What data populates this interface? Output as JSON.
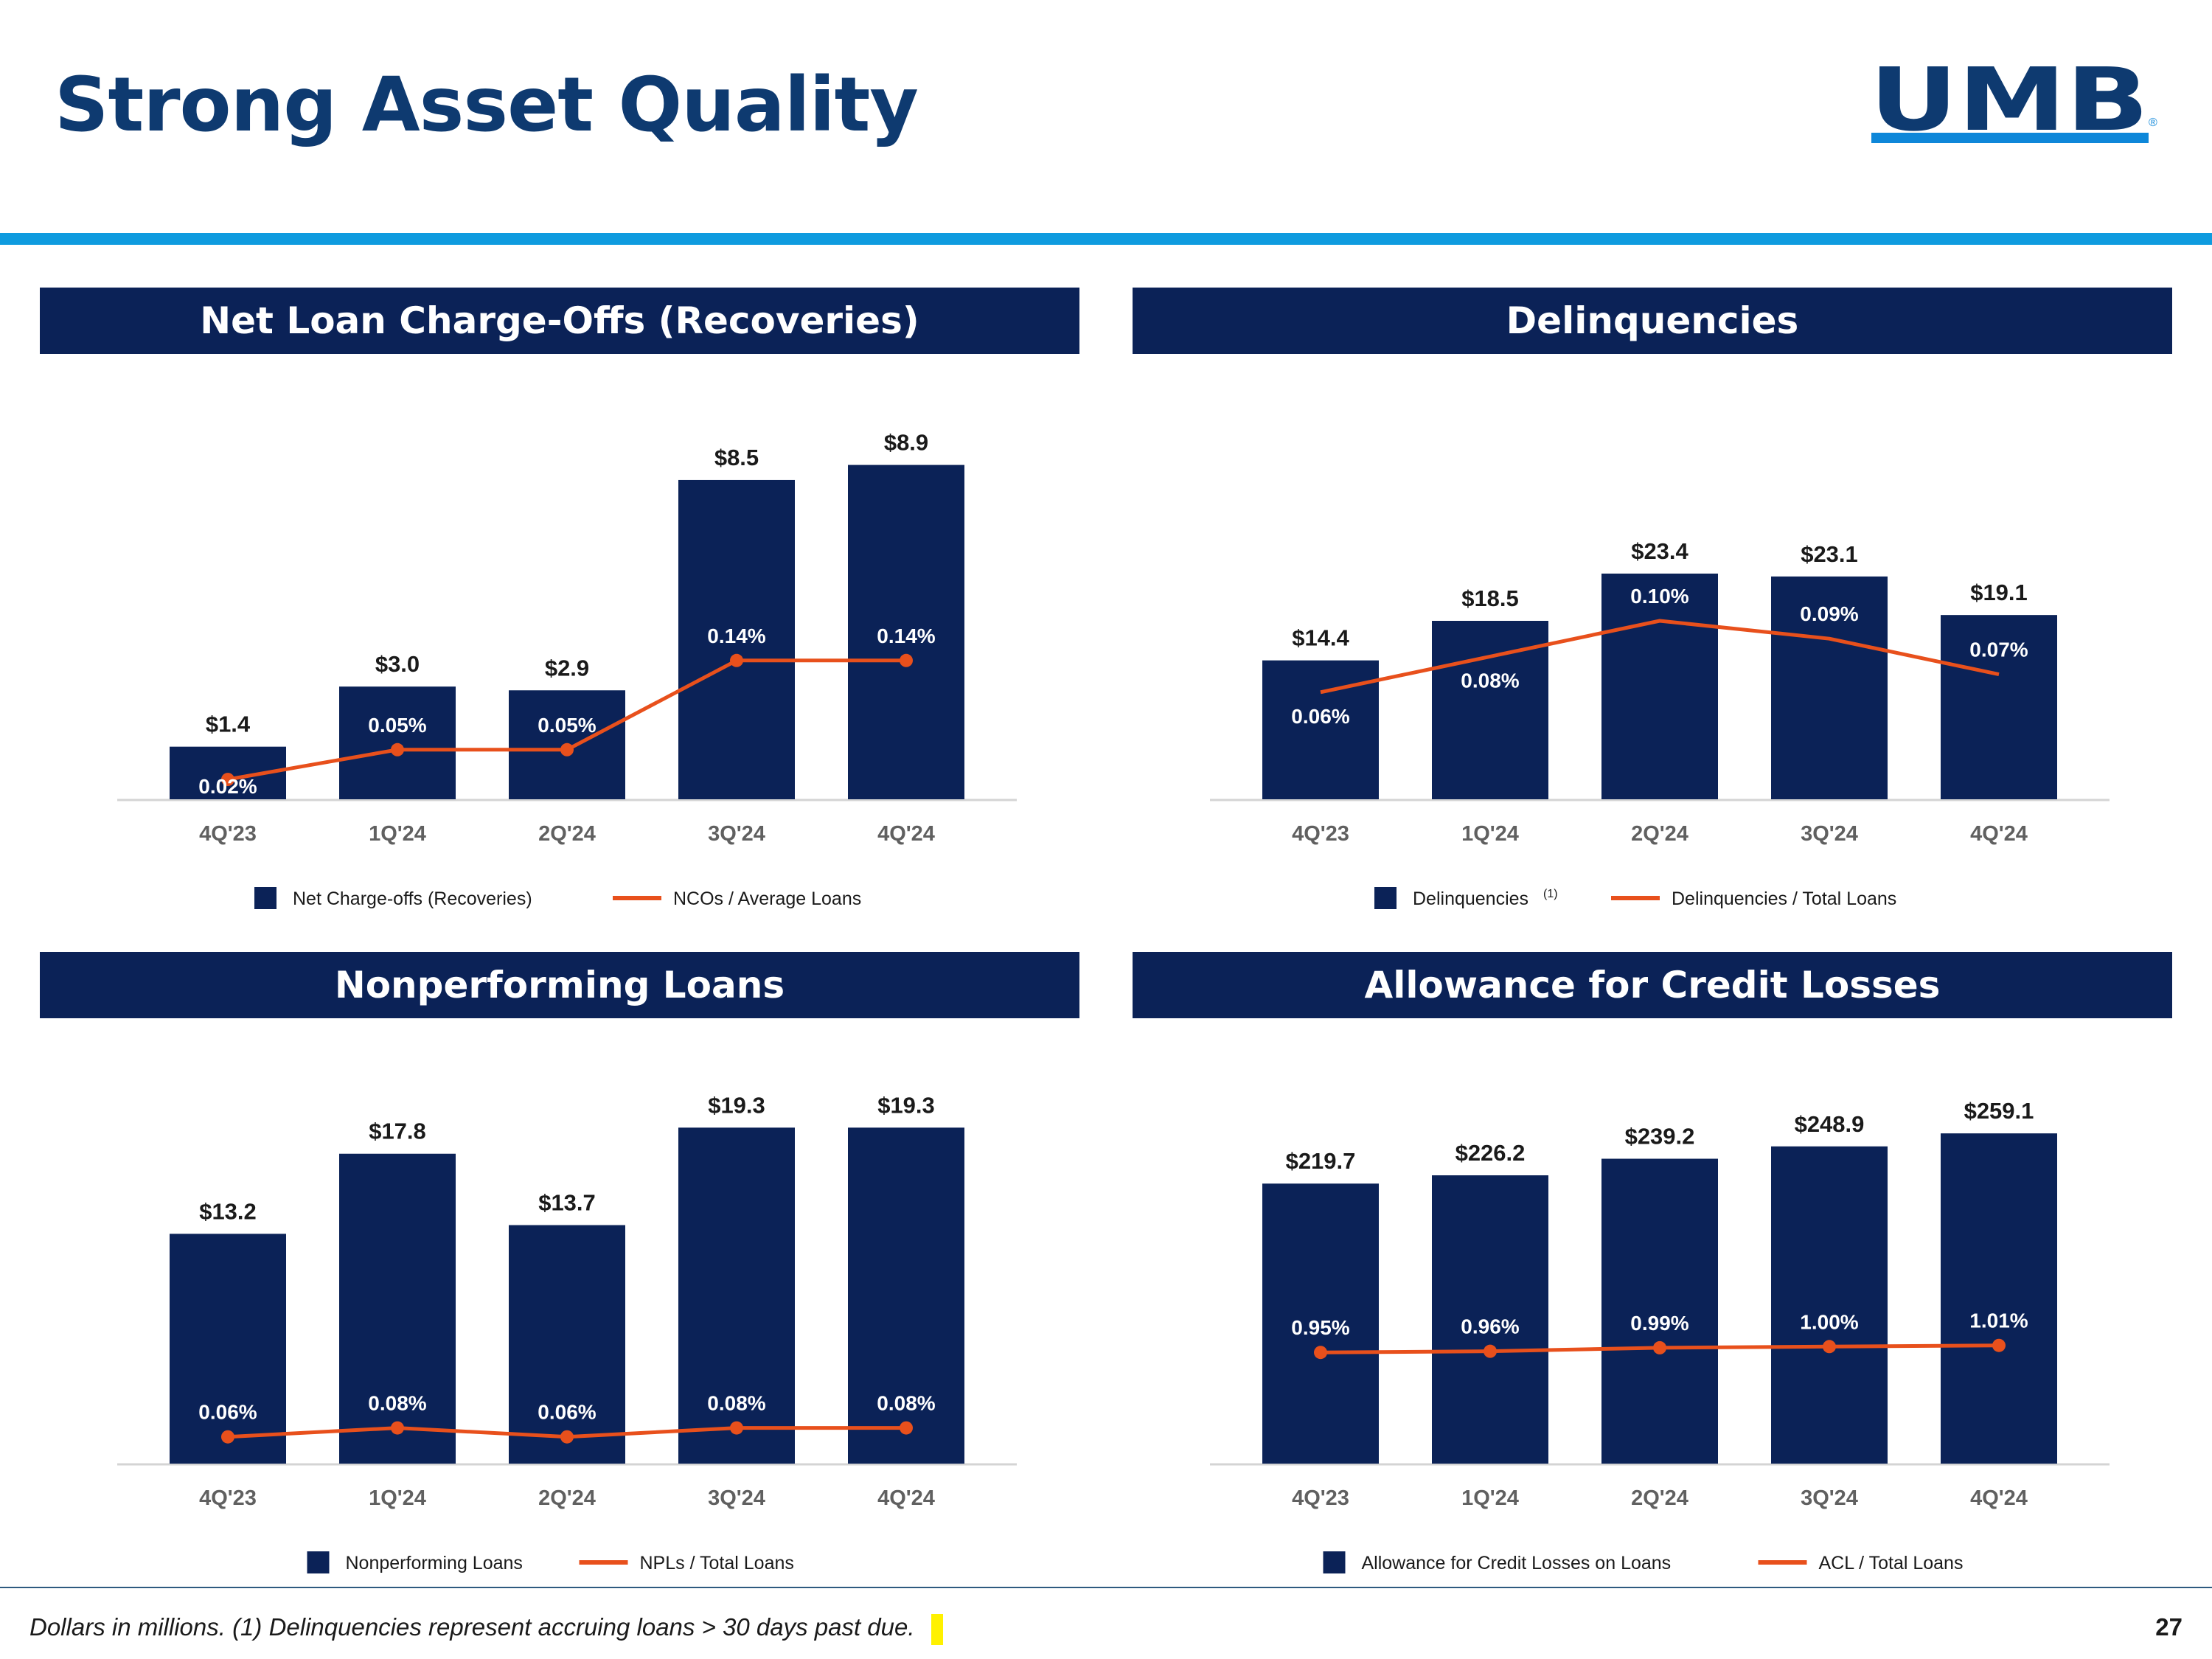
{
  "page": {
    "title": "Strong Asset Quality",
    "logo_text": "UMB",
    "logo_mark": "®",
    "footnote": "Dollars in millions. (1) Delinquencies represent accruing loans > 30 days past due.",
    "page_number": "27",
    "colors": {
      "title": "#0E3A70",
      "accent": "#0E9BDF",
      "bar": "#0B2257",
      "line": "#E8501C",
      "axis_label": "#606060"
    }
  },
  "chart_data": [
    {
      "type": "bar",
      "title": "Net Loan Charge-Offs (Recoveries)",
      "categories": [
        "4Q'23",
        "1Q'24",
        "2Q'24",
        "3Q'24",
        "4Q'24"
      ],
      "series": [
        {
          "name": "Net Charge-offs (Recoveries)",
          "kind": "bar",
          "values": [
            1.4,
            3.0,
            2.9,
            8.5,
            8.9
          ],
          "labels": [
            "$1.4",
            "$3.0",
            "$2.9",
            "$8.5",
            "$8.9"
          ]
        },
        {
          "name": "NCOs / Average Loans",
          "kind": "line",
          "values": [
            0.02,
            0.05,
            0.05,
            0.14,
            0.14
          ],
          "labels": [
            "0.02%",
            "0.05%",
            "0.05%",
            "0.14%",
            "0.14%"
          ]
        }
      ],
      "legend": [
        {
          "name": "Net Charge-offs (Recoveries)",
          "sup": ""
        },
        {
          "name": "NCOs / Average Loans",
          "sup": ""
        }
      ],
      "markers": true,
      "ylim": [
        0,
        9.5
      ],
      "y2lim": [
        0,
        0.36
      ]
    },
    {
      "type": "bar",
      "title": "Delinquencies",
      "categories": [
        "4Q'23",
        "1Q'24",
        "2Q'24",
        "3Q'24",
        "4Q'24"
      ],
      "series": [
        {
          "name": "Delinquencies",
          "kind": "bar",
          "values": [
            14.4,
            18.5,
            23.4,
            23.1,
            19.1
          ],
          "labels": [
            "$14.4",
            "$18.5",
            "$23.4",
            "$23.1",
            "$19.1"
          ]
        },
        {
          "name": "Delinquencies / Total Loans",
          "kind": "line",
          "values": [
            0.06,
            0.08,
            0.1,
            0.09,
            0.07
          ],
          "labels": [
            "0.06%",
            "0.08%",
            "0.10%",
            "0.09%",
            "0.07%"
          ]
        }
      ],
      "legend": [
        {
          "name": "Delinquencies",
          "sup": "(1)"
        },
        {
          "name": "Delinquencies / Total Loans",
          "sup": ""
        }
      ],
      "markers": false,
      "ylim": [
        0,
        37
      ],
      "y2lim": [
        0,
        0.2
      ]
    },
    {
      "type": "bar",
      "title": "Nonperforming Loans",
      "categories": [
        "4Q'23",
        "1Q'24",
        "2Q'24",
        "3Q'24",
        "4Q'24"
      ],
      "series": [
        {
          "name": "Nonperforming Loans",
          "kind": "bar",
          "values": [
            13.2,
            17.8,
            13.7,
            19.3,
            19.3
          ],
          "labels": [
            "$13.2",
            "$17.8",
            "$13.7",
            "$19.3",
            "$19.3"
          ]
        },
        {
          "name": "NPLs / Total Loans",
          "kind": "line",
          "values": [
            0.06,
            0.08,
            0.06,
            0.08,
            0.08
          ],
          "labels": [
            "0.06%",
            "0.08%",
            "0.06%",
            "0.08%",
            "0.08%"
          ]
        }
      ],
      "legend": [
        {
          "name": "Nonperforming Loans",
          "sup": ""
        },
        {
          "name": "NPLs / Total Loans",
          "sup": ""
        }
      ],
      "markers": true,
      "ylim": [
        0,
        20.5
      ],
      "y2lim": [
        0,
        0.8
      ]
    },
    {
      "type": "bar",
      "title": "Allowance for Credit Losses",
      "categories": [
        "4Q'23",
        "1Q'24",
        "2Q'24",
        "3Q'24",
        "4Q'24"
      ],
      "series": [
        {
          "name": "Allowance for Credit Losses on Loans",
          "kind": "bar",
          "values": [
            219.7,
            226.2,
            239.2,
            248.9,
            259.1
          ],
          "labels": [
            "$219.7",
            "$226.2",
            "$239.2",
            "$248.9",
            "$259.1"
          ]
        },
        {
          "name": "ACL / Total Loans",
          "kind": "line",
          "values": [
            0.95,
            0.96,
            0.99,
            1.0,
            1.01
          ],
          "labels": [
            "0.95%",
            "0.96%",
            "0.99%",
            "1.00%",
            "1.01%"
          ]
        }
      ],
      "legend": [
        {
          "name": "Allowance for Credit Losses on Loans",
          "sup": ""
        },
        {
          "name": "ACL / Total Loans",
          "sup": ""
        }
      ],
      "markers": true,
      "ylim": [
        0,
        280
      ],
      "y2lim": [
        0,
        3.05
      ]
    }
  ]
}
